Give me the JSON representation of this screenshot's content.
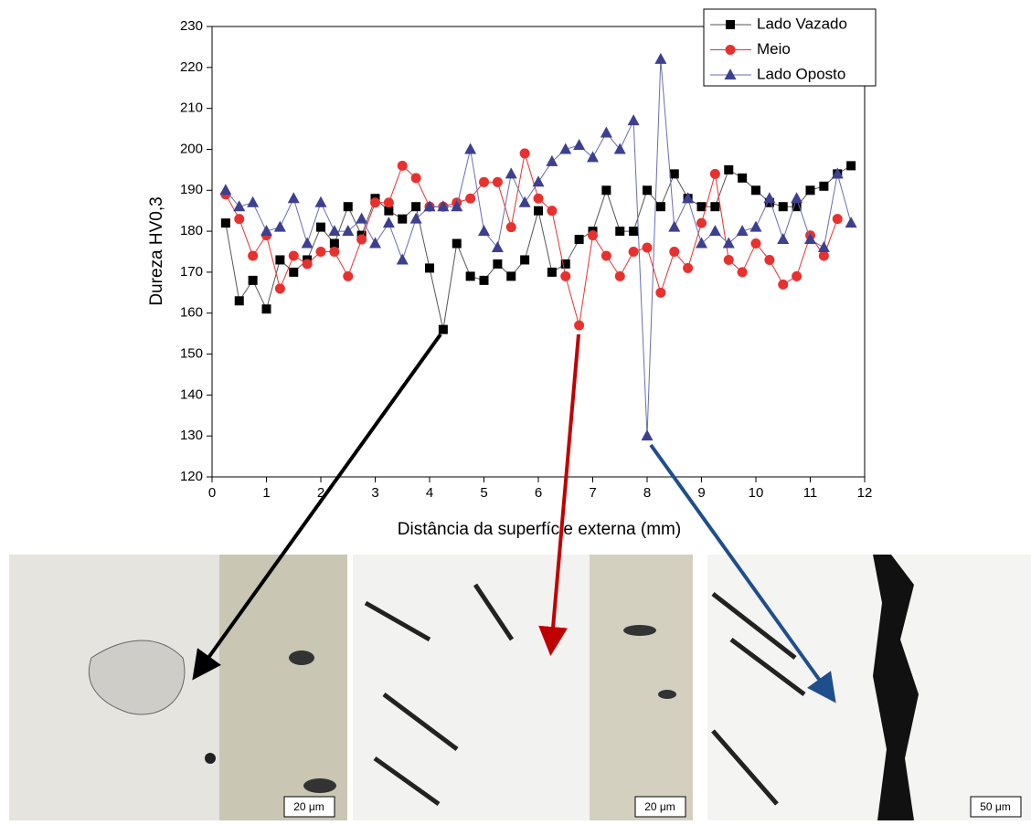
{
  "chart_data": {
    "type": "line",
    "xlabel": "Distância da superfície externa (mm)",
    "ylabel": "Dureza HV0,3",
    "xlim": [
      0,
      12
    ],
    "xticks": [
      0,
      1,
      2,
      3,
      4,
      5,
      6,
      7,
      8,
      9,
      10,
      11,
      12
    ],
    "ylim": [
      120,
      230
    ],
    "yticks": [
      120,
      130,
      140,
      150,
      160,
      170,
      180,
      190,
      200,
      210,
      220,
      230
    ],
    "legend": "top-right",
    "x": [
      0.25,
      0.5,
      0.75,
      1,
      1.25,
      1.5,
      1.75,
      2,
      2.25,
      2.5,
      2.75,
      3,
      3.25,
      3.5,
      3.75,
      4,
      4.25,
      4.5,
      4.75,
      5,
      5.25,
      5.5,
      5.75,
      6,
      6.25,
      6.5,
      6.75,
      7,
      7.25,
      7.5,
      7.75,
      8,
      8.25,
      8.5,
      8.75,
      9,
      9.25,
      9.5,
      9.75,
      10,
      10.25,
      10.5,
      10.75,
      11,
      11.25,
      11.5,
      11.75
    ],
    "series": [
      {
        "name": "Lado Vazado",
        "color": "#000000",
        "marker": "square",
        "values": [
          182,
          163,
          168,
          161,
          173,
          170,
          173,
          181,
          177,
          186,
          179,
          188,
          185,
          183,
          186,
          171,
          156,
          177,
          169,
          168,
          172,
          169,
          173,
          185,
          170,
          172,
          178,
          180,
          190,
          180,
          180,
          190,
          186,
          194,
          188,
          186,
          186,
          195,
          193,
          190,
          187,
          186,
          186,
          190,
          191,
          194,
          196
        ]
      },
      {
        "name": "Meio",
        "color": "#e8312f",
        "marker": "circle",
        "values": [
          189,
          183,
          174,
          179,
          166,
          174,
          172,
          175,
          175,
          169,
          178,
          187,
          187,
          196,
          193,
          186,
          186,
          187,
          188,
          192,
          192,
          181,
          199,
          188,
          185,
          169,
          157,
          179,
          174,
          169,
          175,
          176,
          165,
          175,
          171,
          182,
          194,
          173,
          170,
          177,
          173,
          167,
          169,
          179,
          174,
          183,
          null
        ]
      },
      {
        "name": "Lado Oposto",
        "color": "#3d3f8f",
        "marker": "triangle",
        "values": [
          190,
          186,
          187,
          180,
          181,
          188,
          177,
          187,
          180,
          180,
          183,
          177,
          182,
          173,
          183,
          186,
          186,
          186,
          200,
          180,
          176,
          194,
          187,
          192,
          197,
          200,
          201,
          198,
          204,
          200,
          207,
          130,
          222,
          181,
          188,
          177,
          180,
          177,
          180,
          181,
          188,
          178,
          188,
          178,
          176,
          194,
          182
        ]
      }
    ]
  },
  "micrographs": [
    {
      "scale_bar": "20 μm"
    },
    {
      "scale_bar": "20 μm"
    },
    {
      "scale_bar": "50 μm"
    }
  ]
}
